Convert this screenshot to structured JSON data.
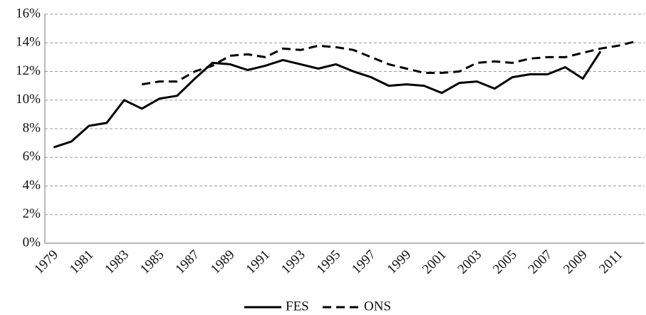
{
  "chart_data": {
    "type": "line",
    "categories": [
      "1979",
      null,
      "1981",
      null,
      "1983",
      null,
      "1985",
      null,
      "1987",
      null,
      "1989",
      null,
      "1991",
      null,
      "1993",
      null,
      "1995",
      null,
      "1997",
      null,
      "1999",
      null,
      "2001",
      null,
      "2003",
      null,
      "2005",
      null,
      "2007",
      null,
      "2009",
      null,
      "2011",
      null
    ],
    "series": [
      {
        "name": "FES",
        "color": "#000000",
        "dash": "solid",
        "values": [
          6.7,
          7.1,
          8.2,
          8.4,
          10.0,
          9.4,
          10.1,
          10.3,
          11.5,
          12.6,
          12.5,
          12.1,
          12.4,
          12.8,
          12.5,
          12.2,
          12.5,
          12.0,
          11.6,
          11.0,
          11.1,
          11.0,
          10.5,
          11.2,
          11.3,
          10.8,
          11.6,
          11.8,
          11.8,
          12.3,
          11.5,
          13.4,
          null,
          null
        ]
      },
      {
        "name": "ONS",
        "color": "#000000",
        "dash": "dashed",
        "values": [
          null,
          null,
          null,
          null,
          null,
          11.1,
          11.3,
          11.3,
          12.0,
          12.4,
          13.1,
          13.2,
          13.0,
          13.6,
          13.5,
          13.8,
          13.7,
          13.5,
          13.0,
          12.5,
          12.2,
          11.9,
          11.9,
          12.0,
          12.6,
          12.7,
          12.6,
          12.9,
          13.0,
          13.0,
          13.3,
          13.6,
          13.8,
          14.1
        ]
      }
    ],
    "ylim": [
      0,
      16
    ],
    "yticks": [
      {
        "value": 0,
        "label": "0%"
      },
      {
        "value": 2,
        "label": "2%"
      },
      {
        "value": 4,
        "label": "4%"
      },
      {
        "value": 6,
        "label": "6%"
      },
      {
        "value": 8,
        "label": "8%"
      },
      {
        "value": 10,
        "label": "10%"
      },
      {
        "value": 12,
        "label": "12%"
      },
      {
        "value": 14,
        "label": "14%"
      },
      {
        "value": 16,
        "label": "16%"
      }
    ],
    "grid": true,
    "legend": "bottom"
  }
}
